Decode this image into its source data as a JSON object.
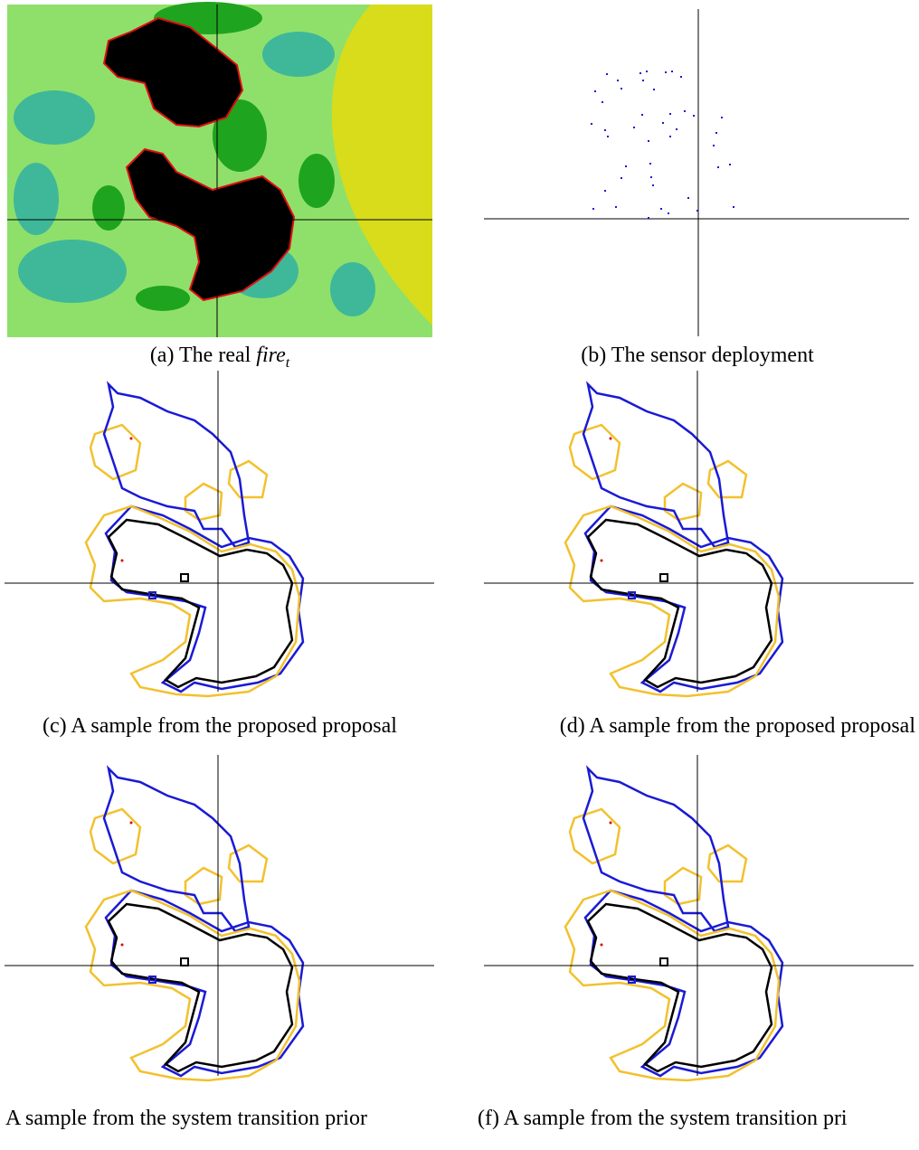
{
  "panels": [
    {
      "caption": "(a) The real",
      "caption_math": "fire",
      "caption_sub": "t"
    },
    {
      "caption": "(b) The sensor deployment"
    },
    {
      "caption": "(c) A sample from the proposed proposal"
    },
    {
      "caption": "(d) A sample from the proposed proposal"
    },
    {
      "caption": "A sample from the system transition prior"
    },
    {
      "caption": "(f) A sample from the system transition pri"
    }
  ]
}
